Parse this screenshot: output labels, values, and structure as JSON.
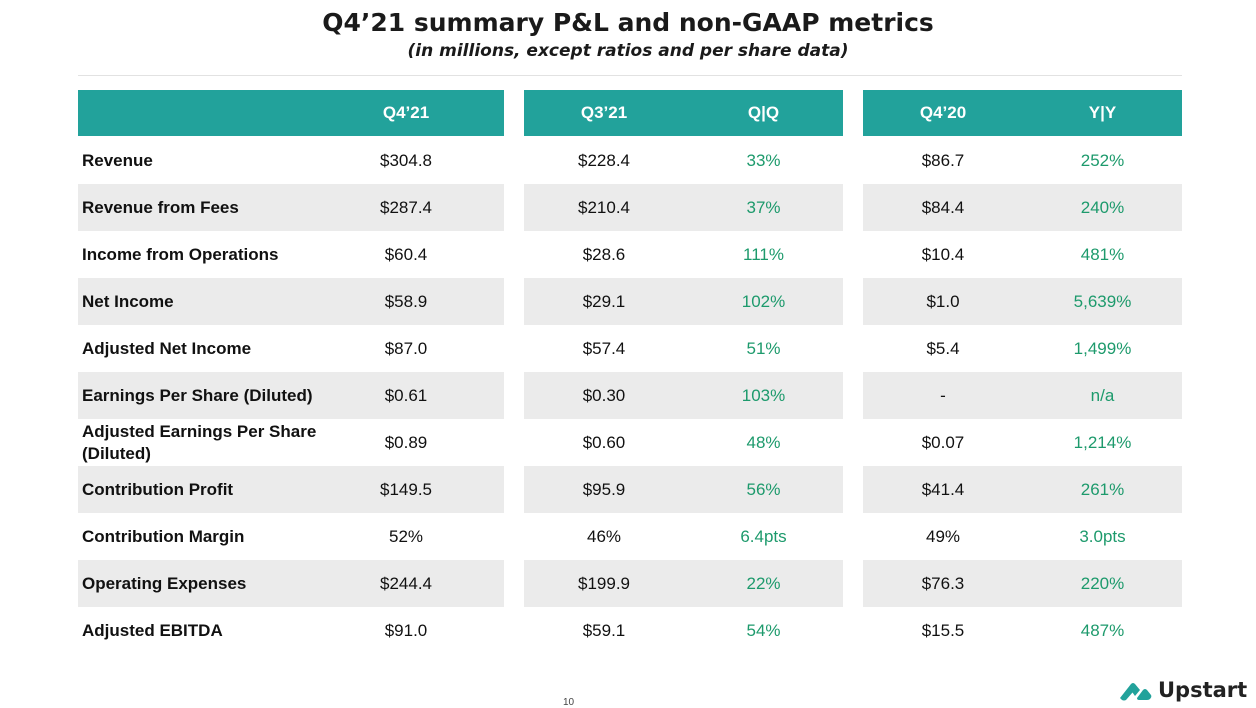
{
  "title": "Q4’21 summary P&L and non-GAAP metrics",
  "subtitle": "(in millions, except ratios and per share data)",
  "columns": [
    "Q4’21",
    "Q3’21",
    "Q|Q",
    "Q4’20",
    "Y|Y"
  ],
  "rows": [
    {
      "label": "Revenue",
      "values": [
        "$304.8",
        "$228.4",
        "33%",
        "$86.7",
        "252%"
      ]
    },
    {
      "label": "Revenue from Fees",
      "values": [
        "$287.4",
        "$210.4",
        "37%",
        "$84.4",
        "240%"
      ]
    },
    {
      "label": "Income from Operations",
      "values": [
        "$60.4",
        "$28.6",
        "111%",
        "$10.4",
        "481%"
      ]
    },
    {
      "label": "Net Income",
      "values": [
        "$58.9",
        "$29.1",
        "102%",
        "$1.0",
        "5,639%"
      ]
    },
    {
      "label": "Adjusted Net Income",
      "values": [
        "$87.0",
        "$57.4",
        "51%",
        "$5.4",
        "1,499%"
      ]
    },
    {
      "label": "Earnings Per Share (Diluted)",
      "values": [
        "$0.61",
        "$0.30",
        "103%",
        "-",
        "n/a"
      ]
    },
    {
      "label": "Adjusted Earnings Per Share (Diluted)",
      "values": [
        "$0.89",
        "$0.60",
        "48%",
        "$0.07",
        "1,214%"
      ]
    },
    {
      "label": "Contribution Profit",
      "values": [
        "$149.5",
        "$95.9",
        "56%",
        "$41.4",
        "261%"
      ]
    },
    {
      "label": "Contribution Margin",
      "values": [
        "52%",
        "46%",
        "6.4pts",
        "49%",
        "3.0pts"
      ]
    },
    {
      "label": "Operating Expenses",
      "values": [
        "$244.4",
        "$199.9",
        "22%",
        "$76.3",
        "220%"
      ]
    },
    {
      "label": "Adjusted EBITDA",
      "values": [
        "$91.0",
        "$59.1",
        "54%",
        "$15.5",
        "487%"
      ]
    }
  ],
  "page_number": "10",
  "logo": {
    "text": "Upstart",
    "icon": "upstart-logo-icon"
  },
  "colors": {
    "header": "#22a29b",
    "change_text": "#1d9a6c",
    "row_shade": "#ebebeb"
  }
}
